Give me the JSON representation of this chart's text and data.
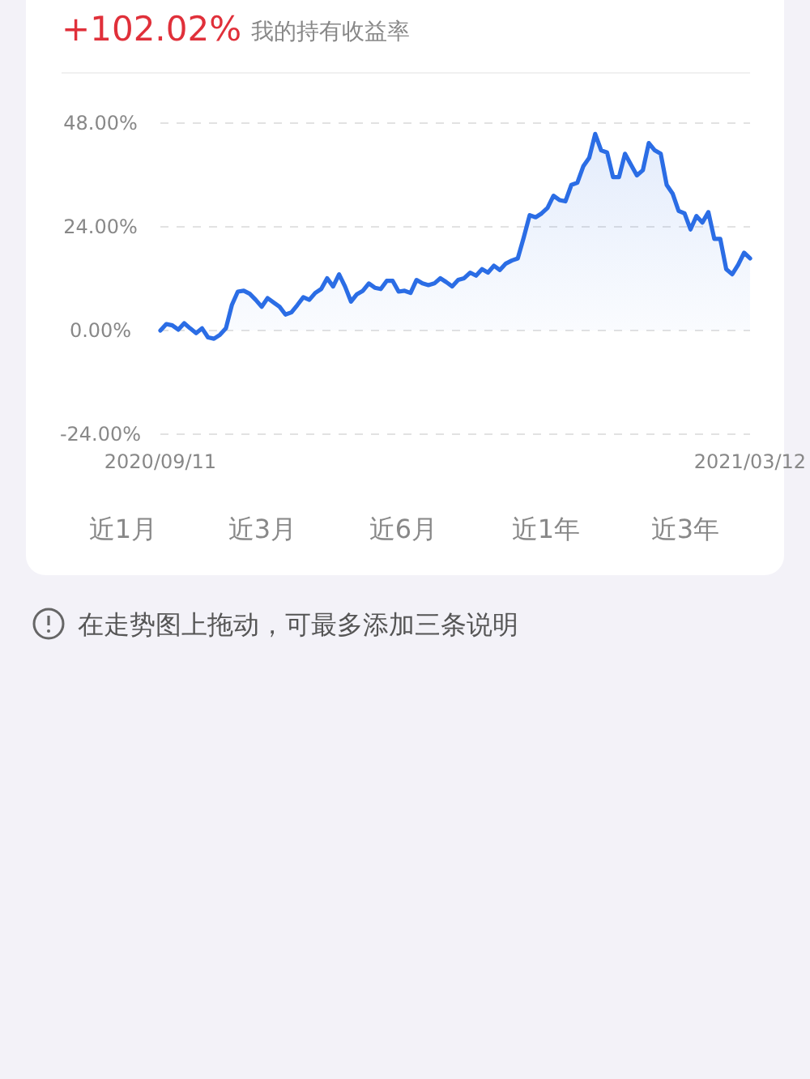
{
  "chart_data": {
    "type": "area",
    "title": "+102.02%",
    "subtitle": "我的持有收益率",
    "categories": [
      "2020/09/11",
      null,
      null,
      null,
      null,
      null,
      null,
      null,
      null,
      null,
      null,
      null,
      null,
      null,
      null,
      null,
      null,
      null,
      null,
      null,
      null,
      null,
      null,
      null,
      null,
      null,
      null,
      null,
      null,
      null,
      null,
      null,
      null,
      null,
      null,
      null,
      null,
      null,
      null,
      null,
      null,
      null,
      null,
      null,
      null,
      null,
      null,
      null,
      null,
      null,
      null,
      null,
      null,
      null,
      null,
      null,
      null,
      null,
      null,
      null,
      null,
      null,
      null,
      null,
      null,
      null,
      null,
      null,
      null,
      null,
      null,
      null,
      null,
      null,
      null,
      null,
      null,
      null,
      null,
      null,
      null,
      null,
      null,
      null,
      null,
      null,
      null,
      null,
      null,
      null,
      null,
      null,
      null,
      null,
      null,
      null,
      null,
      null,
      null,
      "2021/03/12"
    ],
    "values": [
      0,
      1.5,
      1.2,
      0.2,
      1.7,
      0.5,
      -0.6,
      0.5,
      -1.6,
      -1.9,
      -1,
      0.5,
      5.9,
      9,
      9.2,
      8.5,
      7.1,
      5.5,
      7.5,
      6.5,
      5.5,
      3.7,
      4.2,
      5.9,
      7.7,
      7.1,
      8.7,
      9.6,
      12.1,
      10.2,
      13,
      10.2,
      6.7,
      8.4,
      9.2,
      10.9,
      9.9,
      9.6,
      11.5,
      11.5,
      9,
      9.2,
      8.7,
      11.7,
      10.9,
      10.5,
      10.9,
      12.1,
      11.2,
      10.2,
      11.7,
      12.1,
      13.4,
      12.7,
      14.2,
      13.4,
      15,
      14,
      15.5,
      16.2,
      16.7,
      21.5,
      26.7,
      26.2,
      27.1,
      28.4,
      31.2,
      30.2,
      29.9,
      33.7,
      34.2,
      38,
      40,
      45.5,
      41.7,
      41.2,
      35.5,
      35.5,
      40.9,
      38.4,
      35.9,
      37.1,
      43.4,
      41.7,
      40.9,
      33.7,
      31.7,
      27.7,
      27.1,
      23.4,
      26.5,
      25,
      27.4,
      21.2,
      21.2,
      14.2,
      13,
      15.2,
      18,
      16.7
    ],
    "color": "#2b6de5",
    "ylim": [
      -24,
      48
    ],
    "yticks": [
      {
        "value": -24,
        "label": "-24.00%"
      },
      {
        "value": 0,
        "label": "0.00%"
      },
      {
        "value": 24,
        "label": "24.00%"
      },
      {
        "value": 48,
        "label": "48.00%"
      }
    ],
    "grid": "y",
    "annotations": [
      "近1月",
      "近3月",
      "近6月",
      "近1年",
      "近3年",
      "在走势图上拖动，可最多添加三条说明"
    ]
  }
}
